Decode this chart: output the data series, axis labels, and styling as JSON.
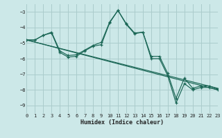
{
  "xlabel": "Humidex (Indice chaleur)",
  "background_color": "#cce8e8",
  "grid_color": "#aacccc",
  "line_color": "#1a6655",
  "xlim": [
    0,
    23
  ],
  "ylim": [
    -9.5,
    -2.5
  ],
  "yticks": [
    -9,
    -8,
    -7,
    -6,
    -5,
    -4,
    -3
  ],
  "xticks": [
    0,
    1,
    2,
    3,
    4,
    5,
    6,
    7,
    8,
    9,
    10,
    11,
    12,
    13,
    14,
    15,
    16,
    17,
    18,
    19,
    20,
    21,
    22,
    23
  ],
  "trend1_x": [
    0,
    23
  ],
  "trend1_y": [
    -4.8,
    -8.0
  ],
  "trend2_x": [
    0,
    23
  ],
  "trend2_y": [
    -4.8,
    -7.9
  ],
  "s1_x": [
    0,
    1,
    2,
    3,
    4,
    5,
    6,
    7,
    8,
    9,
    10,
    11,
    12,
    13,
    14,
    15,
    16,
    17,
    18,
    19,
    20,
    21,
    22,
    23
  ],
  "s1_y": [
    -4.8,
    -4.8,
    -4.5,
    -4.35,
    -5.6,
    -5.9,
    -5.85,
    -5.5,
    -5.2,
    -5.1,
    -3.7,
    -2.9,
    -3.8,
    -4.4,
    -4.3,
    -6.0,
    -6.0,
    -7.1,
    -8.85,
    -7.6,
    -8.0,
    -7.85,
    -7.85,
    -8.0
  ],
  "s2_x": [
    0,
    1,
    2,
    3,
    4,
    5,
    6,
    7,
    8,
    9,
    10,
    11,
    12,
    13,
    14,
    15,
    16,
    17,
    18,
    19,
    20,
    21,
    22,
    23
  ],
  "s2_y": [
    -4.8,
    -4.8,
    -4.5,
    -4.3,
    -5.5,
    -5.8,
    -5.75,
    -5.45,
    -5.15,
    -4.95,
    -3.65,
    -2.9,
    -3.75,
    -4.35,
    -4.3,
    -5.85,
    -5.85,
    -6.95,
    -8.55,
    -7.25,
    -7.9,
    -7.75,
    -7.75,
    -7.95
  ]
}
